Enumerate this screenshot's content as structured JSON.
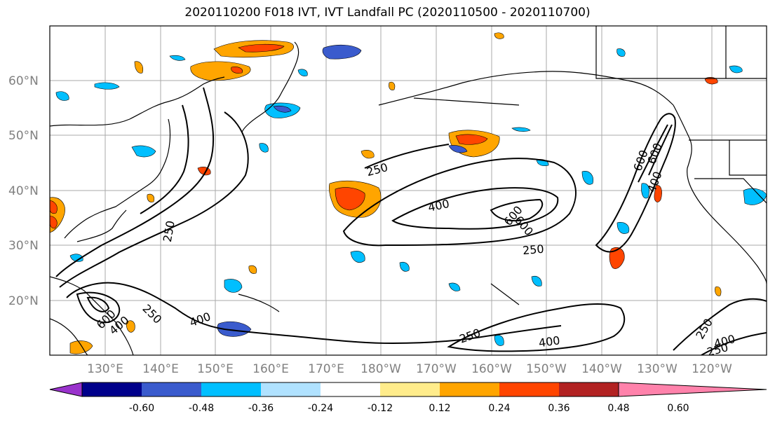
{
  "title": "2020110200 F018 IVT, IVT Landfall PC (2020110500 - 2020110700)",
  "lat_labels": [
    "60°N",
    "50°N",
    "40°N",
    "30°N",
    "20°N"
  ],
  "lon_labels": [
    "130°E",
    "140°E",
    "150°E",
    "160°E",
    "170°E",
    "180°W",
    "170°W",
    "160°W",
    "150°W",
    "140°W",
    "130°W",
    "120°W"
  ],
  "colorbar": {
    "colors": [
      "#9932cc",
      "#00008b",
      "#3a5bcd",
      "#00bfff",
      "#b0e2ff",
      "#ffffff",
      "#ffec8b",
      "#ffa500",
      "#ff4500",
      "#b22222",
      "#ff82ab"
    ],
    "tick_labels": [
      "-0.60",
      "-0.48",
      "-0.36",
      "-0.24",
      "-0.12",
      "0.12",
      "0.24",
      "0.36",
      "0.48",
      "0.60"
    ],
    "extend": "both"
  },
  "ivt_contour_levels": [
    "250",
    "400",
    "600"
  ],
  "contour_labels": [
    "250",
    "400",
    "600",
    "600",
    "600",
    "600",
    "400",
    "250",
    "250",
    "400",
    "600",
    "250",
    "400",
    "250",
    "400",
    "250",
    "400",
    "250"
  ]
}
